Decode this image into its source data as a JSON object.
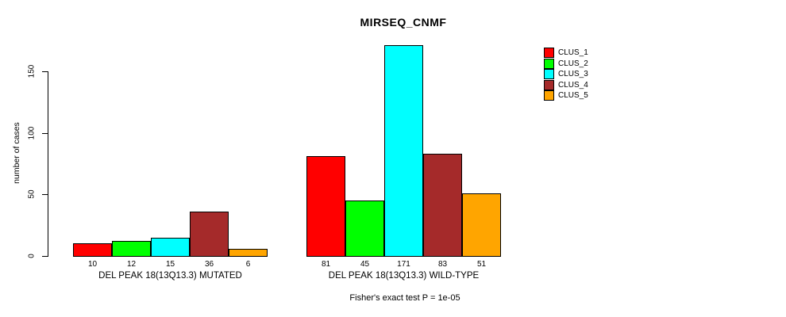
{
  "chart_data": {
    "type": "bar",
    "title": "MIRSEQ_CNMF",
    "subtitle": "Fisher's exact test P = 1e-05",
    "xlabel": "",
    "ylabel": "number of cases",
    "yticks": [
      0,
      50,
      100,
      150
    ],
    "ylim": [
      0,
      175
    ],
    "grid": false,
    "legend_position": "top-right",
    "clusters": [
      {
        "name": "CLUS_1",
        "color": "#ff0000"
      },
      {
        "name": "CLUS_2",
        "color": "#00ff00"
      },
      {
        "name": "CLUS_3",
        "color": "#00ffff"
      },
      {
        "name": "CLUS_4",
        "color": "#a52a2a"
      },
      {
        "name": "CLUS_5",
        "color": "#ffa500"
      }
    ],
    "groups": [
      {
        "label": "DEL PEAK 18(13Q13.3) MUTATED",
        "values": [
          10,
          12,
          15,
          36,
          6
        ]
      },
      {
        "label": "DEL PEAK 18(13Q13.3) WILD-TYPE",
        "values": [
          81,
          45,
          171,
          83,
          51
        ]
      }
    ]
  }
}
